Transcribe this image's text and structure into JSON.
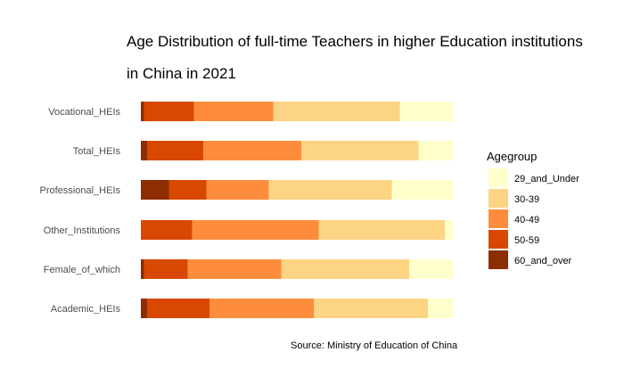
{
  "chart_data": {
    "type": "bar",
    "orientation": "horizontal",
    "stacked": "percent",
    "title": "Age Distribution of full-time Teachers in higher Education institutions in China in 2021",
    "title_lines": [
      "Age Distribution of full-time Teachers in higher Education institutions",
      "in China in 2021"
    ],
    "caption": "Source: Ministry of Education of China",
    "legend_title": "Agegroup",
    "legend_position": "right",
    "grid": false,
    "xlim": [
      0,
      1
    ],
    "categories": [
      "Vocational_HEIs",
      "Total_HEIs",
      "Professional_HEIs",
      "Other_Institutions",
      "Female_of_which",
      "Academic_HEIs"
    ],
    "series": [
      {
        "name": "60_and_over",
        "color": "#8c2d04",
        "values": [
          0.01,
          0.02,
          0.09,
          0.0,
          0.01,
          0.02
        ]
      },
      {
        "name": "50-59",
        "color": "#d94801",
        "values": [
          0.16,
          0.18,
          0.12,
          0.165,
          0.14,
          0.2
        ]
      },
      {
        "name": "40-49",
        "color": "#fd8d3c",
        "values": [
          0.255,
          0.315,
          0.2,
          0.405,
          0.3,
          0.335
        ]
      },
      {
        "name": "30-39",
        "color": "#fdd483",
        "values": [
          0.405,
          0.375,
          0.395,
          0.405,
          0.41,
          0.365
        ]
      },
      {
        "name": "29_and_Under",
        "color": "#ffffcc",
        "values": [
          0.17,
          0.11,
          0.195,
          0.025,
          0.14,
          0.08
        ]
      }
    ],
    "legend_order": [
      "29_and_Under",
      "30-39",
      "40-49",
      "50-59",
      "60_and_over"
    ]
  }
}
